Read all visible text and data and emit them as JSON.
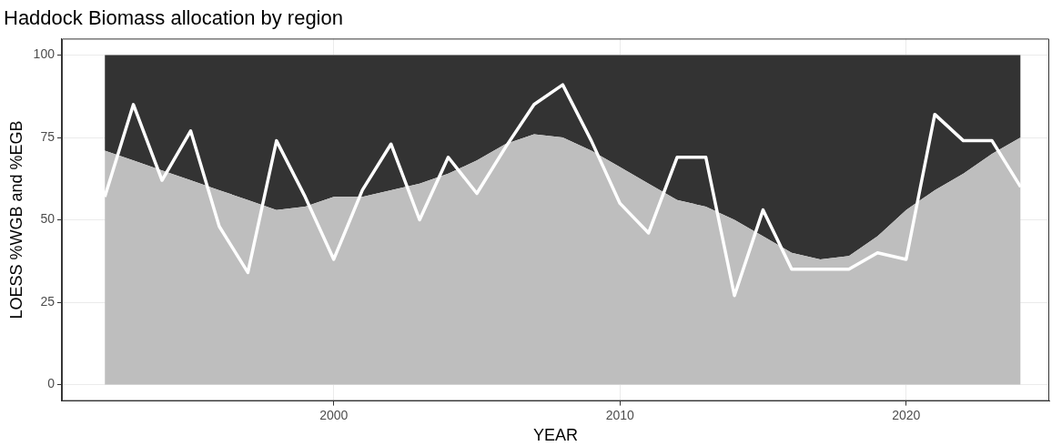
{
  "chart_data": {
    "type": "area",
    "title": "Haddock Biomass allocation by region",
    "xlabel": "YEAR",
    "ylabel": "LOESS %WGB and %EGB",
    "x": [
      1992,
      1993,
      1994,
      1995,
      1996,
      1997,
      1998,
      1999,
      2000,
      2001,
      2002,
      2003,
      2004,
      2005,
      2006,
      2007,
      2008,
      2009,
      2010,
      2011,
      2012,
      2013,
      2014,
      2015,
      2016,
      2017,
      2018,
      2019,
      2020,
      2021,
      2022,
      2023,
      2024
    ],
    "stacked": true,
    "series": [
      {
        "color": "#bebebe",
        "values": [
          71,
          68,
          65,
          62,
          59,
          56,
          53,
          54,
          57,
          57,
          59,
          61,
          64,
          68,
          73,
          76,
          75,
          71,
          66,
          61,
          56,
          54,
          50,
          45,
          40,
          38,
          39,
          45,
          53,
          59,
          64,
          70,
          75
        ]
      },
      {
        "color": "#333333",
        "values": [
          29,
          32,
          35,
          38,
          41,
          44,
          47,
          46,
          43,
          43,
          41,
          39,
          36,
          32,
          27,
          24,
          25,
          29,
          34,
          39,
          44,
          46,
          50,
          55,
          60,
          62,
          61,
          55,
          47,
          41,
          36,
          30,
          25
        ]
      },
      {
        "type": "line",
        "color": "#ffffff",
        "values": [
          57,
          85,
          62,
          77,
          48,
          34,
          74,
          57,
          38,
          59,
          73,
          50,
          69,
          58,
          72,
          85,
          91,
          74,
          55,
          46,
          69,
          69,
          27,
          53,
          35,
          35,
          35,
          40,
          38,
          82,
          74,
          74,
          60
        ]
      }
    ],
    "xlim": [
      1990.5,
      2025
    ],
    "xticks": [
      2000,
      2010,
      2020
    ],
    "ylim": [
      -5,
      105
    ],
    "yticks": [
      0,
      25,
      50,
      75,
      100
    ],
    "grid": true,
    "legend": false
  }
}
